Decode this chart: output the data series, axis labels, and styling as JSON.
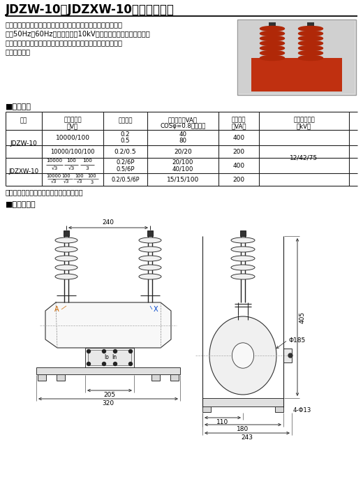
{
  "title": "JDZW-10、JDZXW-10型电压互感器",
  "subtitle_lines": [
    "本型电压互感器为环氧树脂浇注，全封闭支柱式结构，供额定频",
    "率为50Hz或60Hz，额定电压为10kV及以下电力系统中作电压、电",
    "能测量和继电保护用；具有耐电弧、耐老化、耐紫外线、使用寿",
    "命长等特点。"
  ],
  "section1_title": "■技术参数",
  "note": "注：如有特殊要求，可与我厂协商后确定。",
  "section2_title": "■产品外形图",
  "col_headers": [
    "型号",
    "额定电压比",
    "级次组合",
    "额定输出（VA）",
    "极限输出",
    "额定络缘水平"
  ],
  "col_sub": [
    " ",
    "（V）",
    " ",
    "COSφ=0.8（滞后）",
    "（VA）",
    "（kV）"
  ],
  "bg_color": "#ffffff"
}
